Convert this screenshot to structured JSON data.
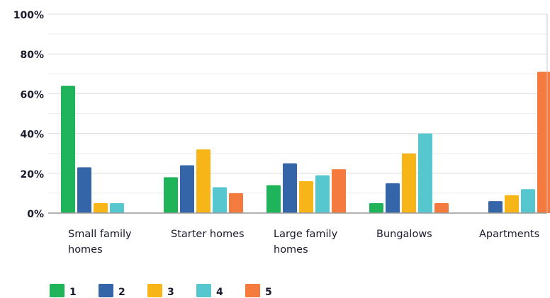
{
  "chart_data": {
    "type": "bar",
    "categories": [
      [
        "Small family",
        "homes"
      ],
      [
        "Starter homes"
      ],
      [
        "Large family",
        "homes"
      ],
      [
        "Bungalows"
      ],
      [
        "Apartments"
      ]
    ],
    "series": [
      {
        "name": "1",
        "color": "#1fb45a",
        "values": [
          64,
          18,
          14,
          5,
          0
        ]
      },
      {
        "name": "2",
        "color": "#3465a8",
        "values": [
          23,
          24,
          25,
          15,
          6
        ]
      },
      {
        "name": "3",
        "color": "#f7b518",
        "values": [
          5,
          32,
          16,
          30,
          9
        ]
      },
      {
        "name": "4",
        "color": "#57c7cf",
        "values": [
          5,
          13,
          19,
          40,
          12
        ]
      },
      {
        "name": "5",
        "color": "#f47a3d",
        "values": [
          0,
          10,
          22,
          5,
          71
        ]
      }
    ],
    "y_ticks": [
      "0%",
      "20%",
      "40%",
      "60%",
      "80%",
      "100%"
    ],
    "ylim": [
      0,
      100
    ],
    "grid": true,
    "legend": "bottom-left"
  }
}
